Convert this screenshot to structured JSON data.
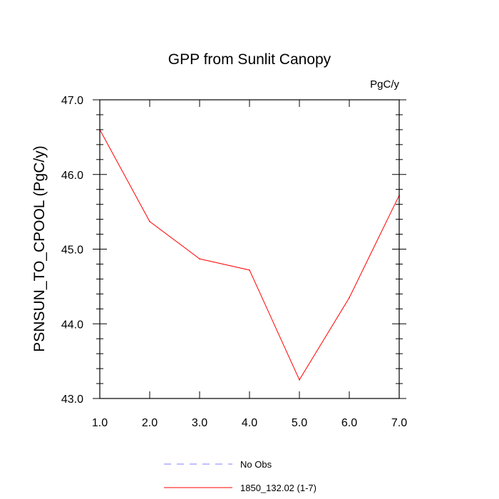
{
  "chart_data": {
    "type": "line",
    "title": "GPP from Sunlit Canopy",
    "units": "PgC/y",
    "ylabel": "PSNSUN_TO_CPOOL  (PgC/y)",
    "xlabel": "",
    "xlim": [
      1.0,
      7.0
    ],
    "ylim": [
      43.0,
      47.0
    ],
    "x_ticks": [
      "1.0",
      "2.0",
      "3.0",
      "4.0",
      "5.0",
      "6.0",
      "7.0"
    ],
    "y_ticks": [
      "43.0",
      "44.0",
      "45.0",
      "46.0",
      "47.0"
    ],
    "grid": false,
    "legend_position": "bottom",
    "series": [
      {
        "name": "1850_132.02 (1-7)",
        "color": "#ff0000",
        "dash": "solid",
        "x": [
          1,
          2,
          3,
          4,
          5,
          6,
          7
        ],
        "values": [
          46.6,
          45.37,
          44.87,
          44.72,
          43.25,
          44.35,
          45.72
        ]
      }
    ],
    "legend": [
      {
        "label": "No Obs",
        "color": "#8080ff",
        "dash": "dashed"
      },
      {
        "label": "1850_132.02 (1-7)",
        "color": "#ff0000",
        "dash": "solid"
      }
    ]
  }
}
